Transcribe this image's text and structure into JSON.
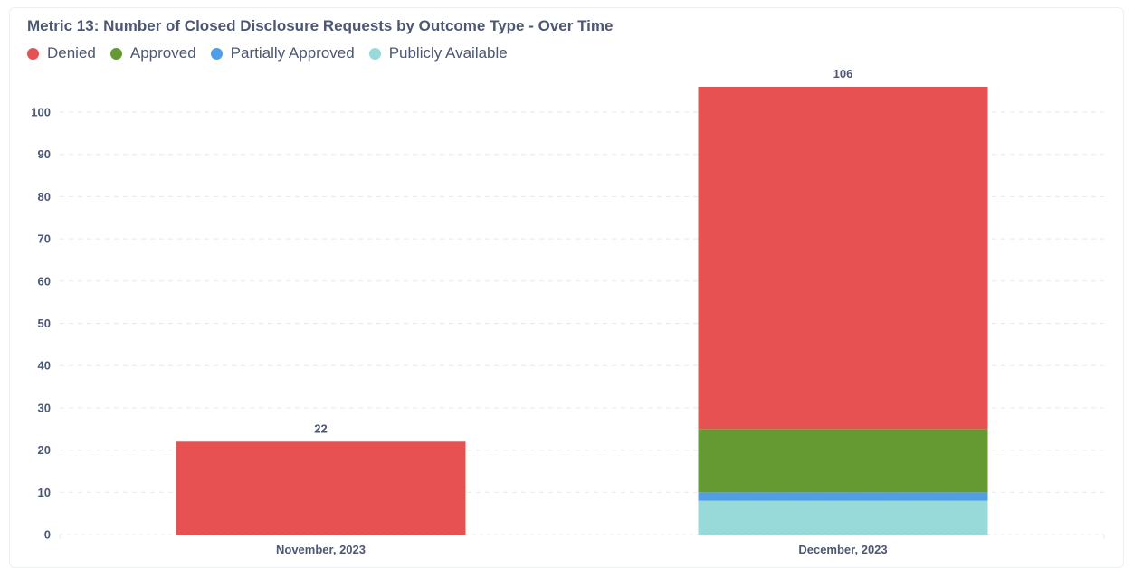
{
  "chart_data": {
    "type": "bar",
    "stacked": true,
    "title": "Metric 13: Number of Closed Disclosure Requests by Outcome Type - Over Time",
    "categories": [
      "November, 2023",
      "December, 2023"
    ],
    "series": [
      {
        "name": "Publicly Available",
        "color": "#98d9d9",
        "values": [
          0,
          8
        ]
      },
      {
        "name": "Partially Approved",
        "color": "#509ee3",
        "values": [
          0,
          2
        ]
      },
      {
        "name": "Approved",
        "color": "#659a33",
        "values": [
          0,
          15
        ]
      },
      {
        "name": "Denied",
        "color": "#e75152",
        "values": [
          22,
          81
        ]
      }
    ],
    "totals": [
      22,
      106
    ],
    "legend_order": [
      "Denied",
      "Approved",
      "Partially Approved",
      "Publicly Available"
    ],
    "ylim": [
      0,
      106
    ],
    "yticks": [
      0,
      10,
      20,
      30,
      40,
      50,
      60,
      70,
      80,
      90,
      100
    ],
    "xlabel": "",
    "ylabel": "",
    "grid": true,
    "legend_position": "top-left"
  }
}
